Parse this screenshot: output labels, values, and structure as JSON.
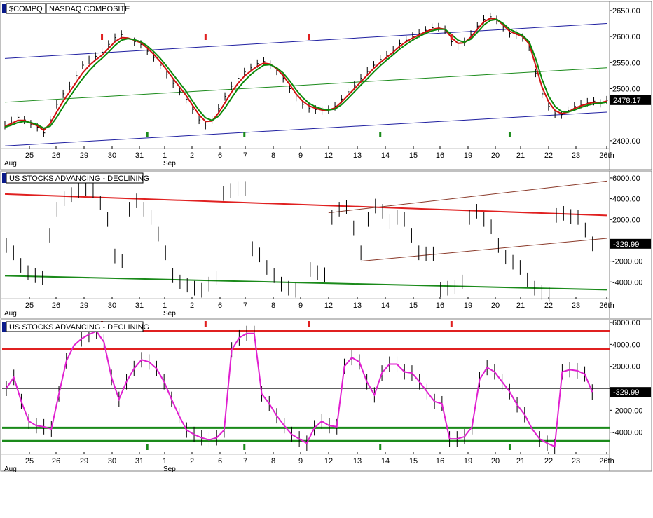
{
  "chart_data": [
    {
      "type": "line",
      "panel": "price",
      "symbol": "$COMPQ",
      "title": "NASDAQ COMPOSITE",
      "last_value": "2478.17",
      "ylim": [
        2385,
        2662
      ],
      "y_ticks": [
        {
          "value": 2650,
          "label": "2650.00"
        },
        {
          "value": 2600,
          "label": "2600.00"
        },
        {
          "value": 2550,
          "label": "2550.00"
        },
        {
          "value": 2500,
          "label": "2500.00"
        },
        {
          "value": 2400,
          "label": "2400.00"
        }
      ],
      "x_ticks": [
        "25",
        "26",
        "29",
        "30",
        "31",
        "1",
        "2",
        "6",
        "7",
        "8",
        "9",
        "12",
        "13",
        "14",
        "15",
        "16",
        "19",
        "20",
        "21",
        "22",
        "23",
        "26th"
      ],
      "month_labels": [
        {
          "at": "25",
          "label": "Aug"
        },
        {
          "at": "1",
          "label": "Sep"
        }
      ],
      "series": [
        {
          "values": [
            2430,
            2438,
            2445,
            2440,
            2432,
            2426,
            2415,
            2440,
            2470,
            2490,
            2505,
            2525,
            2545,
            2555,
            2562,
            2570,
            2585,
            2598,
            2604,
            2596,
            2590,
            2585,
            2572,
            2560,
            2545,
            2528,
            2510,
            2495,
            2480,
            2460,
            2440,
            2430,
            2440,
            2462,
            2485,
            2505,
            2520,
            2532,
            2540,
            2548,
            2552,
            2546,
            2534,
            2520,
            2500,
            2484,
            2470,
            2462,
            2460,
            2458,
            2460,
            2466,
            2480,
            2494,
            2506,
            2520,
            2533,
            2545,
            2556,
            2564,
            2574,
            2586,
            2593,
            2600,
            2606,
            2612,
            2617,
            2618,
            2613,
            2590,
            2582,
            2590,
            2604,
            2620,
            2633,
            2638,
            2632,
            2618,
            2606,
            2604,
            2598,
            2580,
            2530,
            2490,
            2466,
            2452,
            2450,
            2458,
            2466,
            2470,
            2474,
            2476,
            2472,
            2478
          ]
        },
        {
          "values": [
            2428,
            2433,
            2439,
            2439,
            2434,
            2429,
            2420,
            2433,
            2455,
            2476,
            2494,
            2512,
            2530,
            2544,
            2555,
            2564,
            2577,
            2590,
            2598,
            2597,
            2593,
            2588,
            2578,
            2566,
            2552,
            2536,
            2519,
            2503,
            2487,
            2468,
            2450,
            2437,
            2438,
            2453,
            2473,
            2493,
            2510,
            2524,
            2534,
            2543,
            2549,
            2547,
            2538,
            2525,
            2508,
            2490,
            2476,
            2467,
            2462,
            2459,
            2459,
            2463,
            2474,
            2487,
            2500,
            2513,
            2526,
            2539,
            2550,
            2560,
            2570,
            2581,
            2590,
            2597,
            2603,
            2609,
            2614,
            2616,
            2614,
            2598,
            2587,
            2588,
            2599,
            2614,
            2628,
            2635,
            2633,
            2622,
            2610,
            2605,
            2600,
            2586,
            2545,
            2503,
            2475,
            2458,
            2452,
            2455,
            2462,
            2467,
            2471,
            2474,
            2473,
            2476
          ]
        },
        {
          "values": [
            2426,
            2430,
            2435,
            2437,
            2435,
            2431,
            2424,
            2428,
            2445,
            2465,
            2484,
            2502,
            2519,
            2534,
            2547,
            2558,
            2570,
            2583,
            2593,
            2596,
            2594,
            2590,
            2582,
            2571,
            2558,
            2543,
            2527,
            2511,
            2495,
            2476,
            2458,
            2444,
            2439,
            2447,
            2463,
            2482,
            2500,
            2515,
            2527,
            2537,
            2545,
            2546,
            2540,
            2530,
            2515,
            2498,
            2483,
            2472,
            2465,
            2461,
            2459,
            2461,
            2469,
            2481,
            2494,
            2507,
            2519,
            2532,
            2544,
            2555,
            2565,
            2576,
            2585,
            2593,
            2600,
            2606,
            2611,
            2614,
            2614,
            2604,
            2593,
            2589,
            2595,
            2608,
            2622,
            2631,
            2633,
            2625,
            2614,
            2608,
            2602,
            2590,
            2558,
            2518,
            2486,
            2466,
            2456,
            2455,
            2459,
            2464,
            2468,
            2471,
            2472,
            2474
          ]
        }
      ],
      "bands": [
        {
          "x": [
            0,
            93
          ],
          "values": [
            2390,
            2455
          ]
        },
        {
          "x": [
            0,
            93
          ],
          "values": [
            2558,
            2625
          ]
        },
        {
          "x": [
            0,
            93
          ],
          "values": [
            2474,
            2540
          ]
        }
      ],
      "signals_up": [
        22,
        37,
        58,
        78
      ],
      "signals_down": [
        15,
        31,
        47,
        69
      ]
    },
    {
      "type": "line",
      "panel": "breadth",
      "title": "US STOCKS ADVANCING - DECLINING",
      "last_value": "-329.99",
      "ylim": [
        -5600,
        6400
      ],
      "y_ticks": [
        {
          "value": 6000,
          "label": "6000.00"
        },
        {
          "value": 4000,
          "label": "4000.00"
        },
        {
          "value": 2000,
          "label": "2000.00"
        },
        {
          "value": -2000,
          "label": "-2000.00"
        },
        {
          "value": -4000,
          "label": "-4000.00"
        }
      ],
      "x_ticks": [
        "25",
        "26",
        "29",
        "30",
        "31",
        "1",
        "2",
        "6",
        "7",
        "8",
        "9",
        "12",
        "13",
        "14",
        "15",
        "16",
        "19",
        "20",
        "21",
        "22",
        "23",
        "26th"
      ],
      "month_labels": [
        {
          "at": "25",
          "label": "Aug"
        },
        {
          "at": "1",
          "label": "Sep"
        }
      ],
      "values": [
        -500,
        -1200,
        -2400,
        -3100,
        -3400,
        -3600,
        500,
        3000,
        4000,
        4400,
        4800,
        5000,
        4800,
        3600,
        2000,
        -1500,
        -2000,
        3000,
        3800,
        3000,
        2200,
        600,
        -1200,
        -3400,
        -4000,
        -4300,
        -4600,
        -4800,
        -4200,
        -3600,
        4500,
        4800,
        5000,
        5000,
        -800,
        -1400,
        -2600,
        -3400,
        -4200,
        -4600,
        -4800,
        -3200,
        -2800,
        -3100,
        -3300,
        2200,
        3000,
        3200,
        1200,
        -1200,
        2000,
        3300,
        2800,
        1800,
        2200,
        2000,
        500,
        -1200,
        -1300,
        -1300,
        -4700,
        -4600,
        -4500,
        -4000,
        2200,
        2800,
        2000,
        1300,
        -500,
        -1600,
        -2100,
        -2600,
        -3800,
        -4600,
        -5000,
        -5200,
        2400,
        2600,
        2300,
        2200,
        1000,
        -329.99
      ],
      "bands": [
        {
          "x": [
            0,
            93
          ],
          "values": [
            4450,
            2400
          ]
        },
        {
          "x": [
            0,
            93
          ],
          "values": [
            -3400,
            -4750
          ]
        },
        {
          "x": [
            50,
            93
          ],
          "values": [
            2650,
            5700
          ]
        },
        {
          "x": [
            55,
            93
          ],
          "values": [
            -2000,
            200
          ]
        }
      ]
    },
    {
      "type": "line",
      "panel": "breadth-smoothed",
      "title": "US STOCKS ADVANCING - DECLINING",
      "last_value": "-329.99",
      "ylim": [
        -6000,
        6000
      ],
      "y_ticks": [
        {
          "value": 6000,
          "label": "6000.00"
        },
        {
          "value": 4000,
          "label": "4000.00"
        },
        {
          "value": 2000,
          "label": "2000.00"
        },
        {
          "value": -2000,
          "label": "-2000.00"
        },
        {
          "value": -4000,
          "label": "-4000.00"
        }
      ],
      "x_ticks": [
        "25",
        "26",
        "29",
        "30",
        "31",
        "1",
        "2",
        "6",
        "7",
        "8",
        "9",
        "12",
        "13",
        "14",
        "15",
        "16",
        "19",
        "20",
        "21",
        "22",
        "23",
        "26th"
      ],
      "month_labels": [
        {
          "at": "25",
          "label": "Aug"
        },
        {
          "at": "1",
          "label": "Sep"
        }
      ],
      "levels": [
        {
          "value": 5200,
          "color": "#e02020"
        },
        {
          "value": 3600,
          "color": "#e02020"
        },
        {
          "value": 0,
          "color": "#000000"
        },
        {
          "value": -3600,
          "color": "#1a8a1a"
        },
        {
          "value": -4800,
          "color": "#1a8a1a"
        }
      ],
      "values": [
        0,
        1000,
        -1200,
        -3000,
        -3400,
        -3500,
        -3700,
        -500,
        2500,
        3900,
        4500,
        4900,
        5200,
        4200,
        1000,
        -1000,
        600,
        1800,
        2600,
        2400,
        1800,
        600,
        -1000,
        -2500,
        -3800,
        -4200,
        -4500,
        -4700,
        -4500,
        -3800,
        3500,
        4600,
        5000,
        5000,
        -500,
        -1400,
        -2500,
        -3400,
        -4200,
        -4600,
        -5000,
        -3600,
        -3000,
        -3400,
        -3500,
        2000,
        2800,
        2400,
        600,
        -600,
        1400,
        2200,
        2200,
        1500,
        1400,
        600,
        -300,
        -1200,
        -1400,
        -4600,
        -4600,
        -4400,
        -3500,
        800,
        1900,
        1500,
        600,
        -300,
        -1500,
        -2400,
        -3700,
        -4600,
        -5000,
        -5300,
        1500,
        1700,
        1600,
        1300,
        -329.99
      ],
      "signals_up": [
        22,
        37,
        58,
        78
      ],
      "signals_down": [
        15,
        31,
        47,
        69
      ]
    }
  ]
}
